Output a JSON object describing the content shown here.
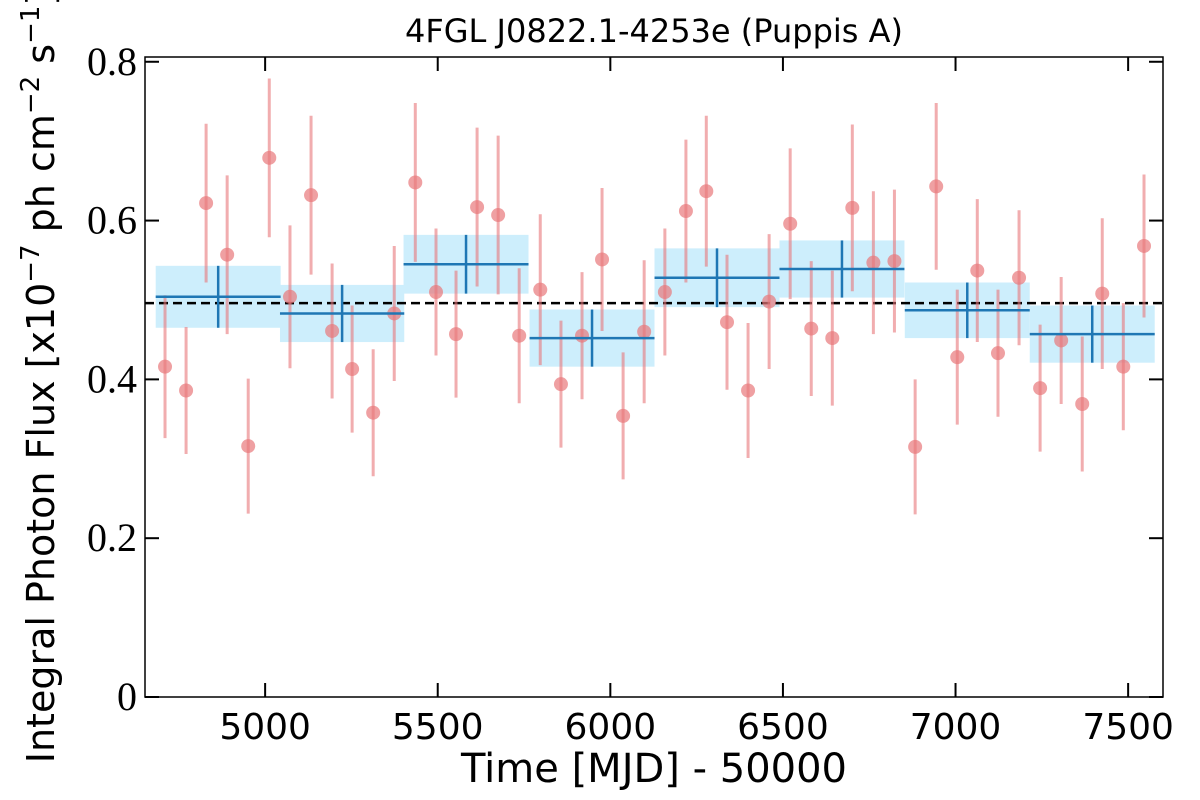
{
  "chart_data": {
    "type": "lightcurve",
    "title": "4FGL J0822.1-4253e (Puppis A)",
    "xlabel": "Time [MJD] - 50000",
    "ylabel": [
      "Integral Photon Flux [x10",
      "−7",
      " ph cm",
      "−2",
      " s",
      "−1",
      "]"
    ],
    "xlim": [
      4652,
      7601
    ],
    "ylim": [
      0,
      0.806
    ],
    "xticks": [
      5000,
      5500,
      6000,
      6500,
      7000,
      7500
    ],
    "yticks": [
      0,
      0.2,
      0.4,
      0.6,
      0.8
    ],
    "points": {
      "color": "#e8777a",
      "x": [
        4710,
        4771,
        4829,
        4890,
        4951,
        5012,
        5072,
        5133,
        5194,
        5252,
        5313,
        5374,
        5435,
        5495,
        5553,
        5614,
        5675,
        5736,
        5797,
        5857,
        5918,
        5976,
        6037,
        6098,
        6158,
        6219,
        6278,
        6338,
        6399,
        6460,
        6521,
        6582,
        6643,
        6701,
        6762,
        6823,
        6883,
        6944,
        7005,
        7063,
        7123,
        7184,
        7245,
        7306,
        7367,
        7425,
        7486,
        7546
      ],
      "values": [
        0.416,
        0.386,
        0.622,
        0.557,
        0.316,
        0.679,
        0.504,
        0.632,
        0.461,
        0.413,
        0.358,
        0.483,
        0.648,
        0.51,
        0.457,
        0.617,
        0.607,
        0.455,
        0.513,
        0.394,
        0.455,
        0.551,
        0.354,
        0.46,
        0.51,
        0.612,
        0.637,
        0.472,
        0.386,
        0.498,
        0.596,
        0.464,
        0.452,
        0.616,
        0.547,
        0.549,
        0.315,
        0.643,
        0.428,
        0.537,
        0.433,
        0.528,
        0.389,
        0.449,
        0.369,
        0.508,
        0.416,
        0.568
      ],
      "errors": [
        0.09,
        0.08,
        0.1,
        0.1,
        0.085,
        0.1,
        0.09,
        0.1,
        0.085,
        0.08,
        0.08,
        0.085,
        0.1,
        0.08,
        0.08,
        0.1,
        0.1,
        0.085,
        0.095,
        0.08,
        0.08,
        0.09,
        0.08,
        0.09,
        0.08,
        0.09,
        0.095,
        0.085,
        0.085,
        0.085,
        0.095,
        0.085,
        0.085,
        0.105,
        0.09,
        0.09,
        0.085,
        0.105,
        0.085,
        0.09,
        0.08,
        0.085,
        0.08,
        0.08,
        0.085,
        0.095,
        0.08,
        0.09
      ]
    },
    "bins": {
      "color": "#1f77b4",
      "band_color": "#cdeefc",
      "x": [
        4864,
        5223,
        5582,
        5947,
        6309,
        6671,
        7034,
        7396
      ],
      "xerr": [
        181,
        180,
        181,
        181,
        181,
        181,
        181,
        181
      ],
      "values": [
        0.504,
        0.483,
        0.545,
        0.452,
        0.528,
        0.539,
        0.487,
        0.457
      ],
      "errors": [
        0.039,
        0.036,
        0.037,
        0.036,
        0.037,
        0.036,
        0.035,
        0.036
      ]
    },
    "mean": 0.496,
    "mean_color": "#000000"
  }
}
